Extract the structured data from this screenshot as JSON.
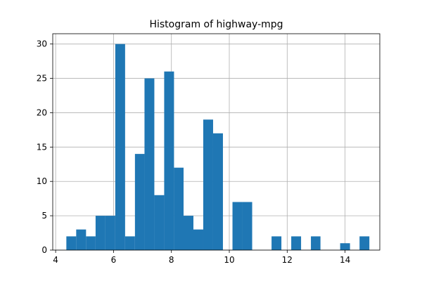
{
  "chart_data": {
    "type": "bar",
    "title": "Histogram of highway-mpg",
    "xlabel": "",
    "ylabel": "",
    "xlim": [
      3.9,
      15.2
    ],
    "ylim": [
      0,
      31.5
    ],
    "grid": true,
    "bar_color": "#1f77b4",
    "xticks": [
      4,
      6,
      8,
      10,
      12,
      14
    ],
    "yticks": [
      0,
      5,
      10,
      15,
      20,
      25,
      30
    ],
    "bins": [
      {
        "start": 4.37,
        "end": 4.71,
        "count": 2
      },
      {
        "start": 4.71,
        "end": 5.05,
        "count": 3
      },
      {
        "start": 5.05,
        "end": 5.38,
        "count": 2
      },
      {
        "start": 5.38,
        "end": 5.72,
        "count": 5
      },
      {
        "start": 5.72,
        "end": 6.06,
        "count": 5
      },
      {
        "start": 6.06,
        "end": 6.4,
        "count": 30
      },
      {
        "start": 6.4,
        "end": 6.74,
        "count": 2
      },
      {
        "start": 6.74,
        "end": 7.07,
        "count": 14
      },
      {
        "start": 7.07,
        "end": 7.41,
        "count": 25
      },
      {
        "start": 7.41,
        "end": 7.75,
        "count": 8
      },
      {
        "start": 7.75,
        "end": 8.09,
        "count": 26
      },
      {
        "start": 8.09,
        "end": 8.42,
        "count": 12
      },
      {
        "start": 8.42,
        "end": 8.76,
        "count": 5
      },
      {
        "start": 8.76,
        "end": 9.1,
        "count": 3
      },
      {
        "start": 9.1,
        "end": 9.44,
        "count": 19
      },
      {
        "start": 9.44,
        "end": 9.78,
        "count": 17
      },
      {
        "start": 9.78,
        "end": 10.11,
        "count": 0
      },
      {
        "start": 10.11,
        "end": 10.45,
        "count": 7
      },
      {
        "start": 10.45,
        "end": 10.79,
        "count": 7
      },
      {
        "start": 10.79,
        "end": 11.13,
        "count": 0
      },
      {
        "start": 11.13,
        "end": 11.46,
        "count": 0
      },
      {
        "start": 11.46,
        "end": 11.8,
        "count": 2
      },
      {
        "start": 11.8,
        "end": 12.14,
        "count": 0
      },
      {
        "start": 12.14,
        "end": 12.48,
        "count": 2
      },
      {
        "start": 12.48,
        "end": 12.82,
        "count": 0
      },
      {
        "start": 12.82,
        "end": 13.15,
        "count": 2
      },
      {
        "start": 13.15,
        "end": 13.49,
        "count": 0
      },
      {
        "start": 13.49,
        "end": 13.83,
        "count": 0
      },
      {
        "start": 13.83,
        "end": 14.17,
        "count": 1
      },
      {
        "start": 14.17,
        "end": 14.5,
        "count": 0
      },
      {
        "start": 14.5,
        "end": 14.84,
        "count": 2
      }
    ]
  }
}
